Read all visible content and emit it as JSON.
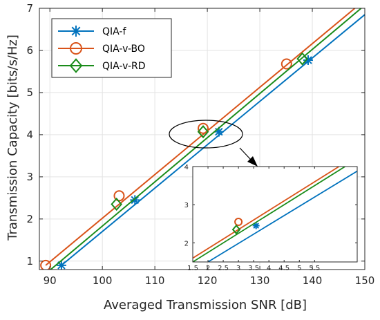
{
  "chart_data": [
    {
      "type": "line",
      "title": "",
      "xlabel": "Averaged Transmission SNR [dB]",
      "ylabel": "Transmission Capacity [bits/s/Hz]",
      "xlim": [
        88,
        150
      ],
      "ylim": [
        0.8,
        7
      ],
      "xticks": [
        "90",
        "100",
        "110",
        "120",
        "130",
        "140",
        "150"
      ],
      "yticks": [
        "1",
        "2",
        "3",
        "4",
        "5",
        "6",
        "7"
      ],
      "grid": true,
      "legend_position": "top-left",
      "series": [
        {
          "name": "QIA-f",
          "color": "#0072BD",
          "marker": "asterisk",
          "line": [
            [
              92.2,
              0.9
            ],
            [
              150,
              6.85
            ]
          ],
          "markers": [
            [
              92.2,
              0.9
            ],
            [
              106.2,
              2.45
            ],
            [
              122.2,
              4.07
            ],
            [
              139.2,
              5.77
            ]
          ]
        },
        {
          "name": "QIA-v-BO",
          "color": "#D95319",
          "marker": "circle",
          "line": [
            [
              89.2,
              0.9
            ],
            [
              148.1,
              7.0
            ]
          ],
          "markers": [
            [
              89.2,
              0.9
            ],
            [
              103.2,
              2.55
            ],
            [
              119.2,
              4.15
            ],
            [
              135.1,
              5.68
            ]
          ]
        },
        {
          "name": "QIA-v-RD",
          "color": "#1A8C1A",
          "marker": "diamond",
          "line": [
            [
              89.2,
              0.7
            ],
            [
              149.3,
              7.0
            ]
          ],
          "markers": [
            [
              102.7,
              2.35
            ],
            [
              119.2,
              4.07
            ],
            [
              138.1,
              5.8
            ]
          ]
        }
      ]
    },
    {
      "type": "line",
      "title": "",
      "xlabel": "",
      "ylabel": "",
      "xlim": [
        1.5,
        6.9
      ],
      "ylim": [
        1.5,
        4
      ],
      "xticks": [
        "1.5",
        "2",
        "2.5",
        "3",
        "3.5",
        "4",
        "4.5",
        "5",
        "5.5"
      ],
      "yticks": [
        "2",
        "3",
        "4"
      ],
      "grid": false,
      "legend_position": "none",
      "series": [
        {
          "name": "",
          "color": "#0072BD",
          "marker": "asterisk",
          "line": [
            [
              2.0,
              1.5
            ],
            [
              6.9,
              3.88
            ]
          ],
          "markers": [
            [
              3.58,
              2.45
            ]
          ]
        },
        {
          "name": "",
          "color": "#D95319",
          "marker": "circle",
          "line": [
            [
              1.5,
              1.6
            ],
            [
              6.3,
              4.0
            ]
          ],
          "markers": [
            [
              3.0,
              2.55
            ]
          ]
        },
        {
          "name": "",
          "color": "#1A8C1A",
          "marker": "diamond",
          "line": [
            [
              1.5,
              1.5
            ],
            [
              6.5,
              4.0
            ]
          ],
          "markers": [
            [
              2.93,
              2.35
            ]
          ]
        }
      ]
    }
  ]
}
